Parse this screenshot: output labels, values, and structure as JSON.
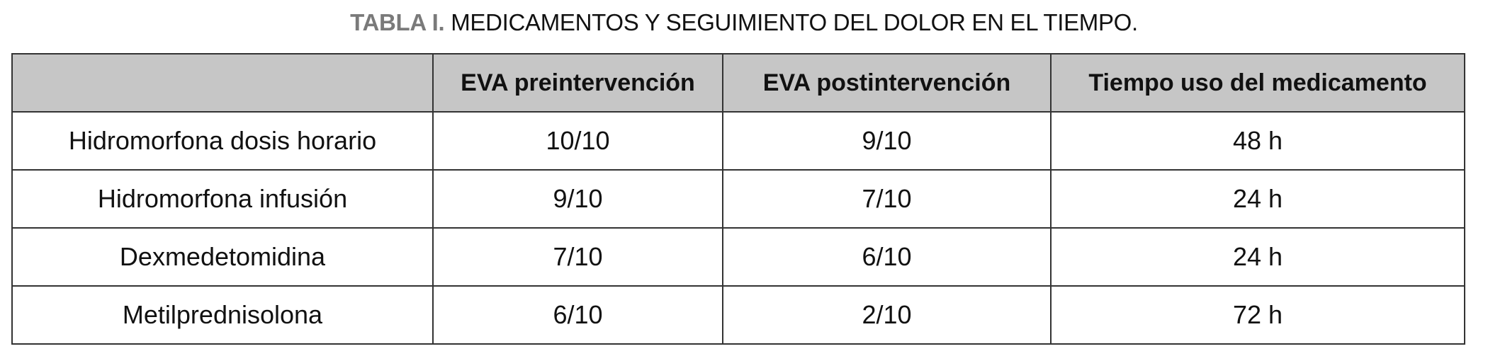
{
  "title": {
    "label": "TABLA I.",
    "text": " MEDICAMENTOS Y SEGUIMIENTO DEL DOLOR EN EL TIEMPO."
  },
  "table": {
    "headers": [
      "",
      "EVA preintervención",
      "EVA postintervención",
      "Tiempo uso del medicamento"
    ],
    "rows": [
      [
        "Hidromorfona dosis horario",
        "10/10",
        "9/10",
        "48 h"
      ],
      [
        "Hidromorfona infusión",
        "9/10",
        "7/10",
        "24 h"
      ],
      [
        "Dexmedetomidina",
        "7/10",
        "6/10",
        "24 h"
      ],
      [
        "Metilprednisolona",
        "6/10",
        "2/10",
        "72 h"
      ]
    ]
  },
  "colors": {
    "header_bg": "#c6c6c6",
    "title_label": "#7a7a7a"
  }
}
